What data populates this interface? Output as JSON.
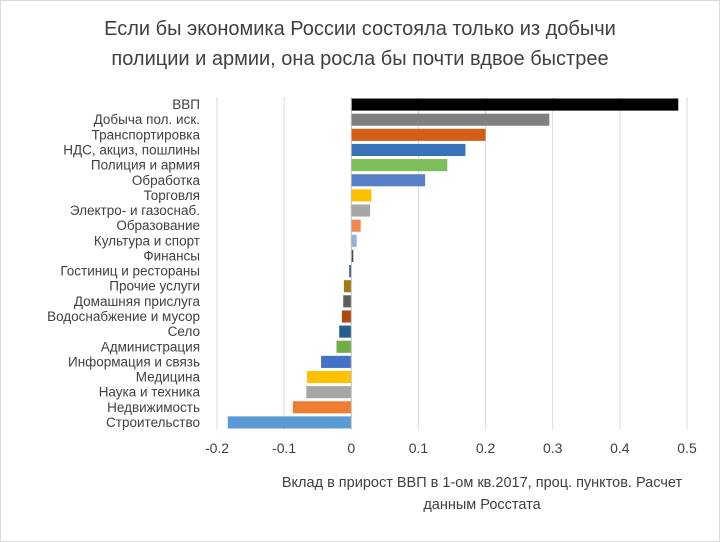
{
  "chart_data": {
    "type": "bar",
    "orientation": "horizontal",
    "title_lines": [
      "Если бы экономика России состояла только из добычи",
      "полиции и армии, она росла бы почти вдвое быстрее"
    ],
    "xlabel_lines": [
      "Вклад в прирост ВВП в 1-ом кв.2017, проц. пунктов. Расчет",
      "данным Росстата"
    ],
    "xlim": [
      -0.2,
      0.5
    ],
    "xticks": [
      "-0.2",
      "-0.1",
      "0",
      "0.1",
      "0.2",
      "0.3",
      "0.4",
      "0.5"
    ],
    "grid": true,
    "legend": "none",
    "categories": [
      "ВВП",
      "Добыча пол. иск.",
      "Транспортировка",
      "НДС, акциз, пошлины",
      "Полиция и армия",
      "Обработка",
      "Торговля",
      "Электро- и газоснаб.",
      "Образование",
      "Культура и спорт",
      "Финансы",
      "Гостиниц и рестораны",
      "Прочие услуги",
      "Домашняя прислуга",
      "Водоснабжение и мусор",
      "Село",
      "Администрация",
      "Информация и связь",
      "Медицина",
      "Наука и техника",
      "Недвижимость",
      "Строительство"
    ],
    "values": [
      0.487,
      0.295,
      0.2,
      0.17,
      0.143,
      0.11,
      0.03,
      0.028,
      0.014,
      0.008,
      0.003,
      -0.003,
      -0.011,
      -0.012,
      -0.014,
      -0.018,
      -0.022,
      -0.045,
      -0.066,
      -0.067,
      -0.087,
      -0.184
    ],
    "colors": [
      "#000000",
      "#808080",
      "#d35f16",
      "#3872b8",
      "#7cbf58",
      "#5880c8",
      "#ffc000",
      "#a6a6a6",
      "#f4874b",
      "#8fb4dc",
      "#4d4d4d",
      "#1f4e79",
      "#a07a10",
      "#5e5e5e",
      "#b04a0c",
      "#255e91",
      "#70ad47",
      "#4472c4",
      "#ffc000",
      "#a6a6a6",
      "#ed7d31",
      "#5b9bd5"
    ]
  }
}
